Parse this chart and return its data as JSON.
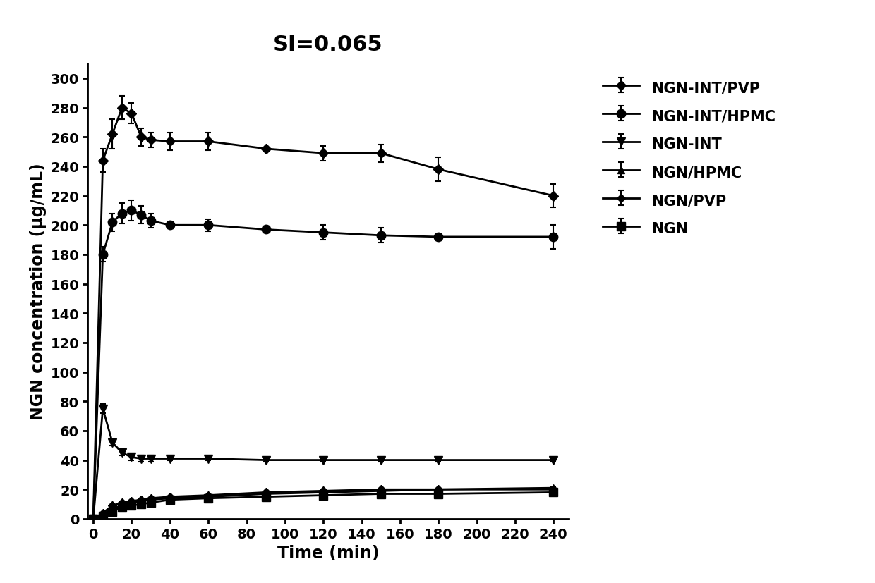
{
  "title": "SI=0.065",
  "xlabel": "Time (min)",
  "ylabel": "NGN concentration (μg/mL)",
  "xlim": [
    -3,
    248
  ],
  "ylim": [
    0,
    310
  ],
  "xticks": [
    0,
    20,
    40,
    60,
    80,
    100,
    120,
    140,
    160,
    180,
    200,
    220,
    240
  ],
  "yticks": [
    0,
    20,
    40,
    60,
    80,
    100,
    120,
    140,
    160,
    180,
    200,
    220,
    240,
    260,
    280,
    300
  ],
  "series": [
    {
      "label": "NGN-INT/PVP",
      "marker": "D",
      "markersize": 7,
      "color": "#000000",
      "linewidth": 2.0,
      "x": [
        0,
        5,
        10,
        15,
        20,
        25,
        30,
        40,
        60,
        90,
        120,
        150,
        180,
        240
      ],
      "y": [
        0,
        244,
        262,
        280,
        276,
        260,
        258,
        257,
        257,
        252,
        249,
        249,
        238,
        220
      ],
      "yerr": [
        0,
        8,
        10,
        8,
        7,
        6,
        5,
        6,
        6,
        0,
        5,
        6,
        8,
        8
      ]
    },
    {
      "label": "NGN-INT/HPMC",
      "marker": "o",
      "markersize": 9,
      "color": "#000000",
      "linewidth": 2.0,
      "x": [
        0,
        5,
        10,
        15,
        20,
        25,
        30,
        40,
        60,
        90,
        120,
        150,
        180,
        240
      ],
      "y": [
        0,
        180,
        202,
        208,
        210,
        207,
        203,
        200,
        200,
        197,
        195,
        193,
        192,
        192
      ],
      "yerr": [
        0,
        5,
        6,
        7,
        7,
        6,
        5,
        0,
        4,
        0,
        5,
        5,
        0,
        8
      ]
    },
    {
      "label": "NGN-INT",
      "marker": "v",
      "markersize": 8,
      "color": "#000000",
      "linewidth": 2.0,
      "x": [
        0,
        5,
        10,
        15,
        20,
        25,
        30,
        40,
        60,
        90,
        120,
        150,
        180,
        240
      ],
      "y": [
        0,
        75,
        52,
        45,
        42,
        41,
        41,
        41,
        41,
        40,
        40,
        40,
        40,
        40
      ],
      "yerr": [
        0,
        3,
        2,
        2,
        2,
        2,
        2,
        1,
        1,
        1,
        1,
        1,
        1,
        1
      ]
    },
    {
      "label": "NGN/HPMC",
      "marker": "^",
      "markersize": 7,
      "color": "#000000",
      "linewidth": 2.0,
      "x": [
        0,
        5,
        10,
        15,
        20,
        25,
        30,
        40,
        60,
        90,
        120,
        150,
        180,
        240
      ],
      "y": [
        0,
        3,
        7,
        9,
        11,
        12,
        13,
        14,
        15,
        17,
        18,
        19,
        20,
        21
      ],
      "yerr": [
        0,
        0.5,
        0.5,
        0.5,
        0.5,
        0.5,
        0.5,
        0.5,
        0.5,
        0.5,
        0.5,
        0.5,
        0.5,
        0.5
      ]
    },
    {
      "label": "NGN/PVP",
      "marker": "D",
      "markersize": 6,
      "color": "#000000",
      "linewidth": 2.0,
      "x": [
        0,
        5,
        10,
        15,
        20,
        25,
        30,
        40,
        60,
        90,
        120,
        150,
        180,
        240
      ],
      "y": [
        0,
        4,
        9,
        11,
        12,
        13,
        14,
        15,
        16,
        18,
        19,
        20,
        20,
        20
      ],
      "yerr": [
        0,
        0.5,
        0.5,
        0.5,
        0.5,
        0.5,
        0.5,
        0.5,
        0.5,
        0.5,
        0.5,
        0.5,
        0.5,
        0.5
      ]
    },
    {
      "label": "NGN",
      "marker": "s",
      "markersize": 8,
      "color": "#000000",
      "linewidth": 2.0,
      "x": [
        0,
        5,
        10,
        15,
        20,
        25,
        30,
        40,
        60,
        90,
        120,
        150,
        180,
        240
      ],
      "y": [
        0,
        2,
        5,
        8,
        9,
        10,
        11,
        13,
        14,
        15,
        16,
        17,
        17,
        18
      ],
      "yerr": [
        0,
        0.3,
        0.3,
        0.3,
        0.3,
        0.3,
        0.3,
        0.3,
        0.3,
        0.3,
        0.3,
        0.3,
        0.3,
        0.3
      ]
    }
  ],
  "background_color": "#ffffff",
  "title_fontsize": 22,
  "label_fontsize": 17,
  "tick_fontsize": 14,
  "legend_fontsize": 15
}
